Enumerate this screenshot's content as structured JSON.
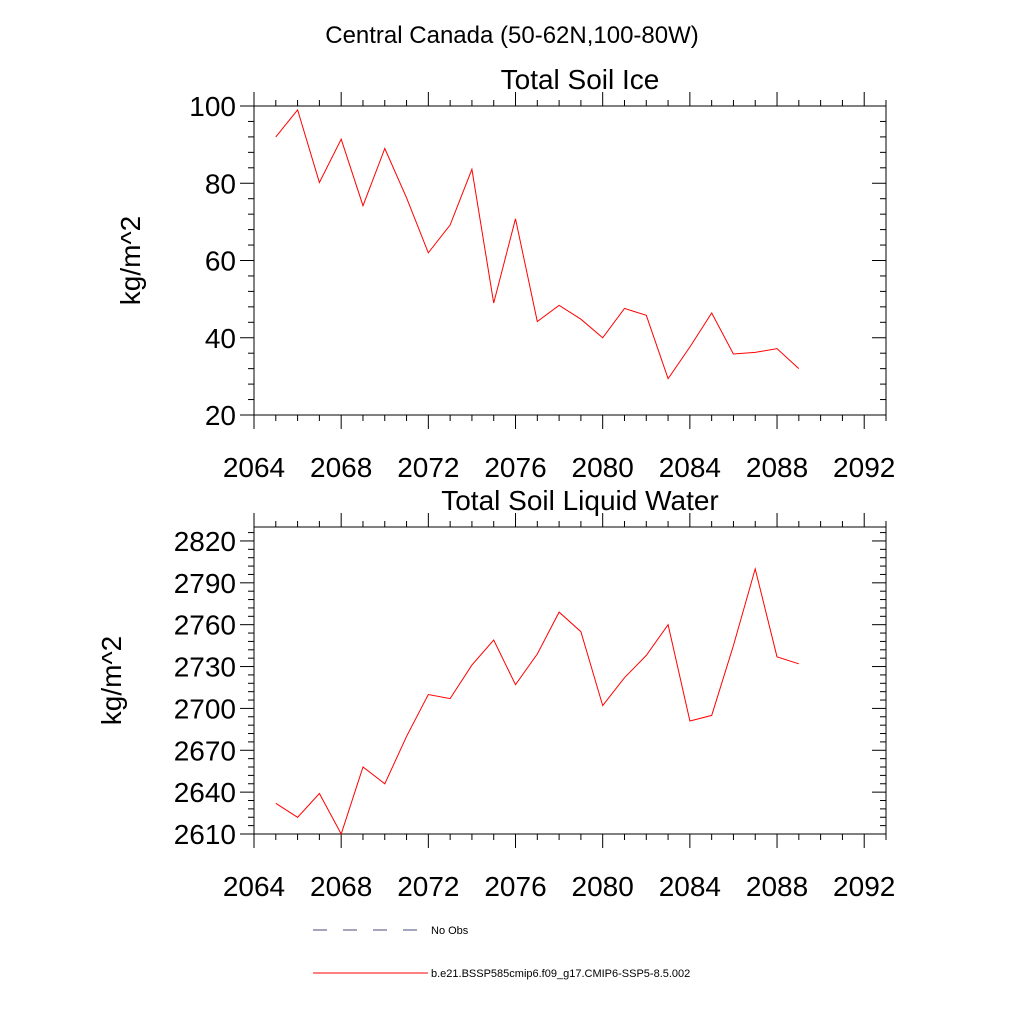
{
  "figure": {
    "title": "Central Canada (50-62N,100-80W)"
  },
  "chart_data": [
    {
      "type": "line",
      "title": "Total Soil Ice",
      "ylabel": "kg/m^2",
      "xlabel": "",
      "xlim": [
        2064,
        2093
      ],
      "ylim": [
        20,
        100
      ],
      "xticks": [
        "2064",
        "2068",
        "2072",
        "2076",
        "2080",
        "2084",
        "2088",
        "2092"
      ],
      "yticks": [
        "20",
        "40",
        "60",
        "80",
        "100"
      ],
      "x": [
        2065,
        2066,
        2067,
        2068,
        2069,
        2070,
        2071,
        2072,
        2073,
        2074,
        2075,
        2076,
        2077,
        2078,
        2079,
        2080,
        2081,
        2082,
        2083,
        2084,
        2085,
        2086,
        2087,
        2088,
        2089
      ],
      "series": [
        {
          "color": "#ff0000",
          "values": [
            92,
            99,
            80.2,
            91.4,
            74.2,
            89,
            76.2,
            62,
            69.2,
            83.6,
            49,
            70.8,
            44.2,
            48.4,
            44.8,
            40,
            47.6,
            45.8,
            29.4,
            37.6,
            46.4,
            35.8,
            36.2,
            37.2,
            32
          ]
        }
      ]
    },
    {
      "type": "line",
      "title": "Total Soil Liquid Water",
      "ylabel": "kg/m^2",
      "xlabel": "",
      "xlim": [
        2064,
        2093
      ],
      "ylim": [
        2610,
        2830
      ],
      "xticks": [
        "2064",
        "2068",
        "2072",
        "2076",
        "2080",
        "2084",
        "2088",
        "2092"
      ],
      "yticks": [
        "2610",
        "2640",
        "2670",
        "2700",
        "2730",
        "2760",
        "2790",
        "2820"
      ],
      "x": [
        2065,
        2066,
        2067,
        2068,
        2069,
        2070,
        2071,
        2072,
        2073,
        2074,
        2075,
        2076,
        2077,
        2078,
        2079,
        2080,
        2081,
        2082,
        2083,
        2084,
        2085,
        2086,
        2087,
        2088,
        2089
      ],
      "series": [
        {
          "color": "#ff0000",
          "values": [
            2632,
            2622,
            2639,
            2610,
            2658,
            2646,
            2680,
            2710,
            2707,
            2731,
            2749,
            2717,
            2739,
            2769,
            2755,
            2702,
            2722,
            2738,
            2760,
            2691,
            2695,
            2745,
            2800,
            2737,
            2732
          ]
        }
      ]
    }
  ],
  "legend": {
    "items": [
      {
        "label": "No Obs",
        "style": "dashed",
        "color": "#4a4a7a"
      },
      {
        "label": "b.e21.BSSP585cmip6.f09_g17.CMIP6-SSP5-8.5.002",
        "style": "solid",
        "color": "#ff0000"
      }
    ]
  }
}
